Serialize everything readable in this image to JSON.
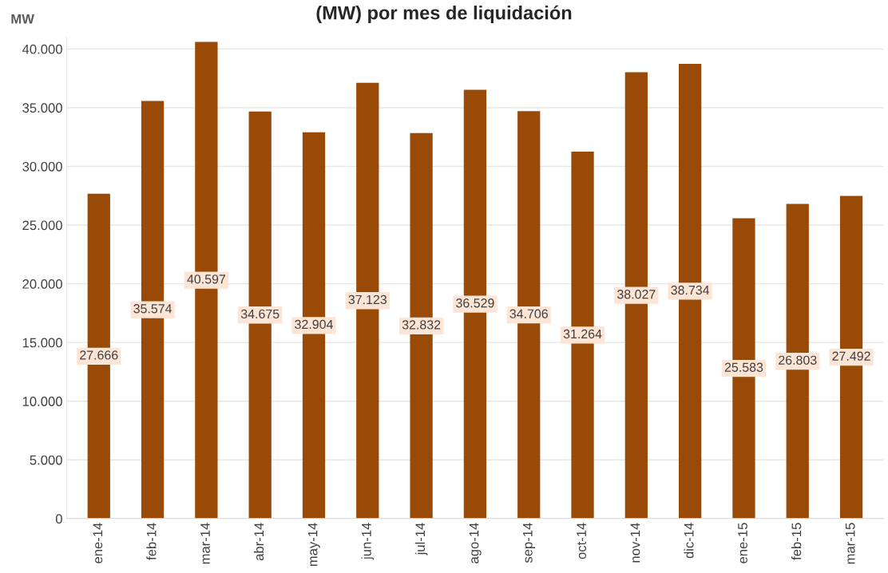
{
  "chart_data": {
    "type": "bar",
    "title": "(MW) por mes de liquidación",
    "ylabel": "MW",
    "categories": [
      "ene-14",
      "feb-14",
      "mar-14",
      "abr-14",
      "may-14",
      "jun-14",
      "jul-14",
      "ago-14",
      "sep-14",
      "oct-14",
      "nov-14",
      "dic-14",
      "ene-15",
      "feb-15",
      "mar-15"
    ],
    "values": [
      27666,
      35574,
      40597,
      34675,
      32904,
      37123,
      32832,
      36529,
      34706,
      31264,
      38027,
      38734,
      25583,
      26803,
      27492
    ],
    "value_labels": [
      "27.666",
      "35.574",
      "40.597",
      "34.675",
      "32.904",
      "37.123",
      "32.832",
      "36.529",
      "34.706",
      "31.264",
      "38.027",
      "38.734",
      "25.583",
      "26.803",
      "27.492"
    ],
    "color": "#994a06",
    "ylim": [
      0,
      41000
    ],
    "yticks": [
      {
        "value": 0,
        "label": "0"
      },
      {
        "value": 5000,
        "label": "5.000"
      },
      {
        "value": 10000,
        "label": "10.000"
      },
      {
        "value": 15000,
        "label": "15.000"
      },
      {
        "value": 20000,
        "label": "20.000"
      },
      {
        "value": 25000,
        "label": "25.000"
      },
      {
        "value": 30000,
        "label": "30.000"
      },
      {
        "value": 35000,
        "label": "35.000"
      },
      {
        "value": 40000,
        "label": "40.000"
      }
    ],
    "grid": "y"
  }
}
